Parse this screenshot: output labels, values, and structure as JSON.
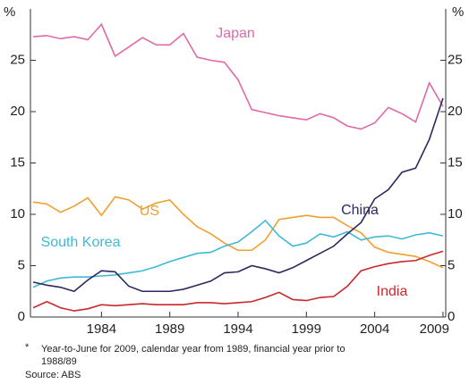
{
  "chart_data": {
    "type": "line",
    "y_label": "%",
    "y2_label": "%",
    "x": [
      1979,
      1980,
      1981,
      1982,
      1983,
      1984,
      1985,
      1986,
      1987,
      1988,
      1989,
      1990,
      1991,
      1992,
      1993,
      1994,
      1995,
      1996,
      1997,
      1998,
      1999,
      2000,
      2001,
      2002,
      2003,
      2004,
      2005,
      2006,
      2007,
      2008,
      2009
    ],
    "xlim": [
      1978.8,
      2009.2
    ],
    "xticks": [
      1984,
      1989,
      1994,
      1999,
      2004,
      2009
    ],
    "ylim": [
      0,
      30
    ],
    "yticks": [
      0,
      5,
      10,
      15,
      20,
      25
    ],
    "y2lim": [
      0,
      30
    ],
    "y2ticks": [
      0,
      5,
      10,
      15,
      20,
      25
    ],
    "series": [
      {
        "name": "Japan",
        "color": "#e06aa8",
        "values": [
          27.3,
          27.4,
          27.1,
          27.3,
          27.0,
          28.5,
          25.4,
          26.3,
          27.2,
          26.5,
          26.5,
          27.6,
          25.3,
          25.0,
          24.8,
          23.1,
          20.2,
          19.9,
          19.6,
          19.4,
          19.2,
          19.8,
          19.4,
          18.6,
          18.3,
          18.9,
          20.4,
          19.8,
          19.0,
          22.8,
          20.5
        ]
      },
      {
        "name": "US",
        "color": "#f0a030",
        "values": [
          11.2,
          11.0,
          10.2,
          10.8,
          11.6,
          9.9,
          11.7,
          11.4,
          10.5,
          11.1,
          11.4,
          10.0,
          8.8,
          8.1,
          7.2,
          6.5,
          6.5,
          7.5,
          9.5,
          9.7,
          9.9,
          9.7,
          9.7,
          8.9,
          8.2,
          6.8,
          6.3,
          6.1,
          5.9,
          5.4,
          4.8
        ]
      },
      {
        "name": "South Korea",
        "color": "#40b8d8",
        "values": [
          2.9,
          3.5,
          3.8,
          3.9,
          3.9,
          4.0,
          4.1,
          4.3,
          4.5,
          4.9,
          5.4,
          5.8,
          6.2,
          6.3,
          6.9,
          7.3,
          8.3,
          9.4,
          7.9,
          6.9,
          7.2,
          8.1,
          7.8,
          8.3,
          7.5,
          7.8,
          7.9,
          7.6,
          8.0,
          8.2,
          7.9
        ]
      },
      {
        "name": "China",
        "color": "#2a2a5e",
        "values": [
          3.4,
          3.1,
          2.9,
          2.5,
          3.6,
          4.5,
          4.4,
          3.0,
          2.5,
          2.5,
          2.5,
          2.7,
          3.1,
          3.5,
          4.3,
          4.4,
          5.0,
          4.7,
          4.3,
          4.8,
          5.5,
          6.2,
          6.9,
          8.1,
          9.2,
          11.5,
          12.4,
          14.1,
          14.5,
          17.3,
          21.3
        ]
      },
      {
        "name": "India",
        "color": "#c8282d",
        "values": [
          0.9,
          1.5,
          0.9,
          0.6,
          0.8,
          1.2,
          1.1,
          1.2,
          1.3,
          1.2,
          1.2,
          1.2,
          1.4,
          1.4,
          1.3,
          1.4,
          1.5,
          1.9,
          2.4,
          1.7,
          1.6,
          1.9,
          2.0,
          3.0,
          4.5,
          4.9,
          5.2,
          5.4,
          5.5,
          6.0,
          6.4
        ]
      }
    ],
    "notes": [
      "*",
      "Year-to-June for 2009, calendar year from 1989, financial year prior to",
      "1988/89",
      "Source: ABS"
    ]
  }
}
